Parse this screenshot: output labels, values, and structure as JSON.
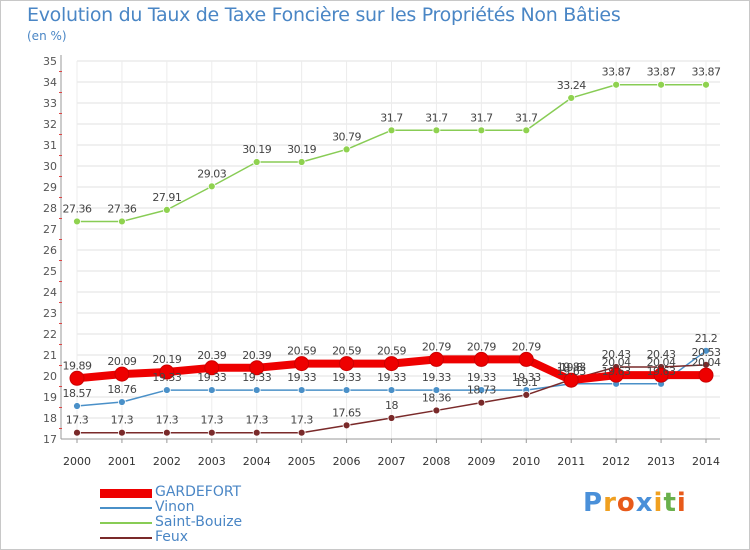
{
  "title": "Evolution du Taux de Taxe Foncière sur les Propriétés Non Bâties",
  "unit": "(en %)",
  "brand": {
    "text": "Proxiti",
    "letters": [
      {
        "ch": "P",
        "color": "#4a90d9"
      },
      {
        "ch": "r",
        "color": "#f0a020"
      },
      {
        "ch": "o",
        "color": "#e85a1a"
      },
      {
        "ch": "x",
        "color": "#4a90d9"
      },
      {
        "ch": "i",
        "color": "#f0a020"
      },
      {
        "ch": "t",
        "color": "#6ab04c"
      },
      {
        "ch": "i",
        "color": "#e85a1a"
      }
    ]
  },
  "chart_data": {
    "type": "line",
    "title": "Evolution du Taux de Taxe Foncière sur les Propriétés Non Bâties",
    "ylabel": "(en %)",
    "xlabel": "",
    "ylim": [
      17,
      35
    ],
    "yticks": [
      17,
      18,
      19,
      20,
      21,
      22,
      23,
      24,
      25,
      26,
      27,
      28,
      29,
      30,
      31,
      32,
      33,
      34,
      35
    ],
    "categories": [
      "2000",
      "2001",
      "2002",
      "2003",
      "2004",
      "2005",
      "2006",
      "2007",
      "2008",
      "2009",
      "2010",
      "2011",
      "2012",
      "2013",
      "2014"
    ],
    "legend_position": "bottom-left",
    "series": [
      {
        "name": "GARDEFORT",
        "color": "#ee0000",
        "width": 8,
        "marker": 7,
        "values": [
          19.89,
          20.09,
          20.19,
          20.39,
          20.39,
          20.59,
          20.59,
          20.59,
          20.79,
          20.79,
          20.79,
          19.8,
          20.04,
          20.04,
          20.04
        ],
        "labels": [
          "19.89",
          "20.09",
          "20.19",
          "20.39",
          "20.39",
          "20.59",
          "20.59",
          "20.59",
          "20.79",
          "20.79",
          "20.79",
          "19.8",
          "20.04",
          "20.04",
          "20.04"
        ]
      },
      {
        "name": "Vinon",
        "color": "#4a90c8",
        "width": 1.5,
        "marker": 3.5,
        "values": [
          18.57,
          18.76,
          19.33,
          19.33,
          19.33,
          19.33,
          19.33,
          19.33,
          19.33,
          19.33,
          19.33,
          19.63,
          19.63,
          19.63,
          21.2
        ],
        "labels": [
          "18.57",
          "18.76",
          "19.33",
          "19.33",
          "19.33",
          "19.33",
          "19.33",
          "19.33",
          "19.33",
          "19.33",
          "19.33",
          "19.63",
          "19.63",
          "19.63",
          "21.2"
        ]
      },
      {
        "name": "Saint-Bouize",
        "color": "#88cc55",
        "width": 1.5,
        "marker": 3.5,
        "values": [
          27.36,
          27.36,
          27.91,
          29.03,
          30.19,
          30.19,
          30.79,
          31.7,
          31.7,
          31.7,
          31.7,
          33.24,
          33.87,
          33.87,
          33.87
        ],
        "labels": [
          "27.36",
          "27.36",
          "27.91",
          "29.03",
          "30.19",
          "30.19",
          "30.79",
          "31.7",
          "31.7",
          "31.7",
          "31.7",
          "33.24",
          "33.87",
          "33.87",
          "33.87"
        ]
      },
      {
        "name": "Feux",
        "color": "#7a2a2a",
        "width": 1.5,
        "marker": 3.5,
        "values": [
          17.3,
          17.3,
          17.3,
          17.3,
          17.3,
          17.3,
          17.65,
          18,
          18.36,
          18.73,
          19.1,
          19.83,
          20.43,
          20.43,
          20.53
        ],
        "labels": [
          "17.3",
          "17.3",
          "17.3",
          "17.3",
          "17.3",
          "17.3",
          "17.65",
          "18",
          "18.36",
          "18.73",
          "19.1",
          "19.83",
          "20.43",
          "20.43",
          "20.53"
        ]
      }
    ]
  }
}
